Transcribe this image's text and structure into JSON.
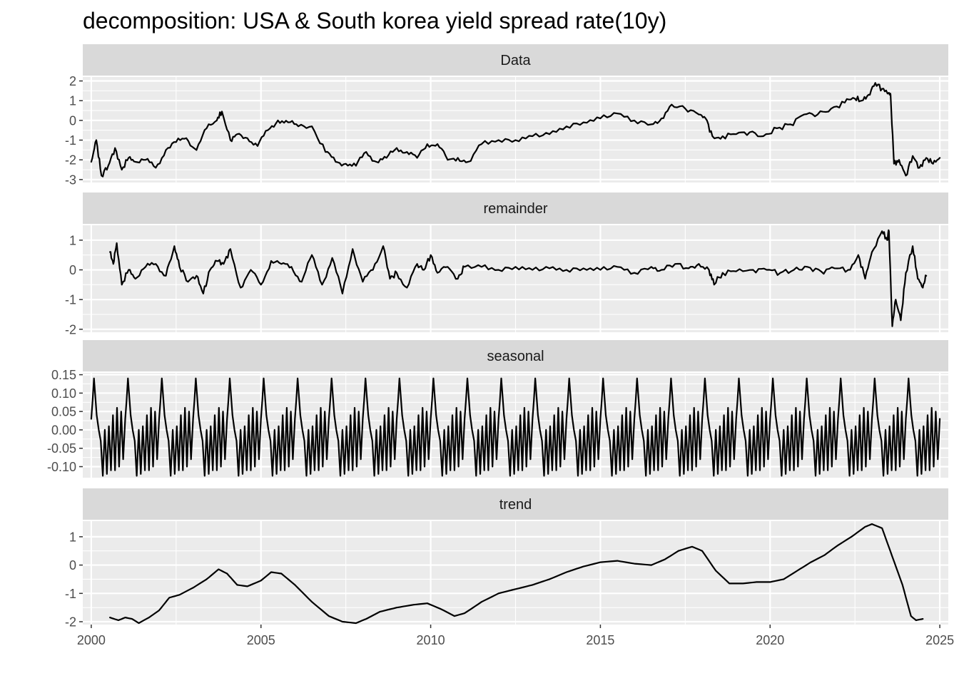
{
  "chart_data": {
    "type": "line",
    "title": "decomposition: USA & South korea yield spread rate(10y)",
    "xlabel": "",
    "ylabel": "",
    "grid": true,
    "xlim": [
      1999.75,
      2025.25
    ],
    "x_ticks": [
      2000,
      2005,
      2010,
      2015,
      2020,
      2025
    ],
    "x_tick_labels": [
      "2000",
      "2005",
      "2010",
      "2015",
      "2020",
      "2025"
    ],
    "colors": {
      "line": "#000000",
      "panel_background": "#ebebeb",
      "strip_background": "#d9d9d9",
      "grid": "#ffffff",
      "tick_text": "#4d4d4d"
    },
    "panels": [
      {
        "strip": "Data",
        "ylim": [
          -3.15,
          2.2
        ],
        "y_ticks": [
          -3,
          -2,
          -1,
          0,
          1,
          2
        ],
        "y_tick_labels": [
          "-3",
          "-2",
          "-1",
          "0",
          "1",
          "2"
        ],
        "series": {
          "x": [
            2000.0,
            2000.15,
            2000.3,
            2000.5,
            2000.7,
            2000.9,
            2001.1,
            2001.3,
            2001.6,
            2001.9,
            2002.2,
            2002.5,
            2002.8,
            2003.1,
            2003.4,
            2003.7,
            2003.85,
            2004.1,
            2004.3,
            2004.6,
            2004.9,
            2005.2,
            2005.5,
            2005.8,
            2006.1,
            2006.5,
            2006.9,
            2007.2,
            2007.5,
            2007.8,
            2008.1,
            2008.4,
            2008.7,
            2009.0,
            2009.3,
            2009.6,
            2009.9,
            2010.2,
            2010.5,
            2010.8,
            2011.1,
            2011.5,
            2012.0,
            2012.5,
            2013.0,
            2013.5,
            2014.0,
            2014.5,
            2015.0,
            2015.5,
            2016.0,
            2016.5,
            2016.8,
            2017.1,
            2017.5,
            2017.9,
            2018.1,
            2018.3,
            2018.6,
            2019.0,
            2019.4,
            2019.8,
            2020.2,
            2020.6,
            2021.0,
            2021.4,
            2021.8,
            2022.2,
            2022.5,
            2022.7,
            2022.9,
            2023.1,
            2023.3,
            2023.5,
            2023.55,
            2023.65,
            2023.8,
            2024.0,
            2024.2,
            2024.4,
            2024.6,
            2024.8,
            2025.0
          ],
          "y": [
            -2.1,
            -1.0,
            -2.8,
            -2.3,
            -1.4,
            -2.5,
            -1.9,
            -2.1,
            -2.0,
            -2.4,
            -1.5,
            -1.1,
            -0.9,
            -1.5,
            -0.4,
            0.0,
            0.45,
            -1.0,
            -0.7,
            -0.9,
            -1.3,
            -0.5,
            0.0,
            -0.1,
            -0.3,
            -0.3,
            -1.6,
            -2.1,
            -2.2,
            -2.3,
            -1.6,
            -2.1,
            -1.9,
            -1.4,
            -1.6,
            -1.9,
            -1.2,
            -1.2,
            -2.0,
            -1.9,
            -2.1,
            -1.2,
            -1.0,
            -1.0,
            -0.8,
            -0.7,
            -0.3,
            -0.1,
            0.1,
            0.35,
            0.0,
            -0.2,
            0.1,
            0.8,
            0.6,
            0.3,
            0.1,
            -0.8,
            -0.8,
            -0.7,
            -0.6,
            -0.8,
            -0.4,
            -0.2,
            0.3,
            0.3,
            0.6,
            0.9,
            1.1,
            1.0,
            1.3,
            1.9,
            1.6,
            1.4,
            1.3,
            -2.2,
            -2.0,
            -2.8,
            -1.8,
            -2.4,
            -1.9,
            -2.2,
            -1.9
          ]
        }
      },
      {
        "strip": "remainder",
        "ylim": [
          -2.1,
          1.5
        ],
        "y_ticks": [
          -2,
          -1,
          0,
          1
        ],
        "y_tick_labels": [
          "-2",
          "-1",
          "0",
          "1"
        ],
        "series": {
          "x": [
            2000.55,
            2000.65,
            2000.75,
            2000.9,
            2001.1,
            2001.3,
            2001.6,
            2001.9,
            2002.2,
            2002.45,
            2002.6,
            2002.85,
            2003.1,
            2003.3,
            2003.5,
            2003.7,
            2003.9,
            2004.1,
            2004.4,
            2004.7,
            2005.0,
            2005.3,
            2005.6,
            2005.9,
            2006.2,
            2006.5,
            2006.8,
            2007.1,
            2007.4,
            2007.7,
            2008.0,
            2008.3,
            2008.6,
            2008.8,
            2009.0,
            2009.3,
            2009.6,
            2009.8,
            2010.0,
            2010.2,
            2010.5,
            2010.8,
            2011.0,
            2011.5,
            2012.0,
            2012.5,
            2013.0,
            2013.5,
            2014.0,
            2014.5,
            2015.0,
            2015.5,
            2016.0,
            2016.5,
            2016.8,
            2017.2,
            2017.6,
            2017.9,
            2018.2,
            2018.35,
            2018.6,
            2019.0,
            2019.5,
            2019.9,
            2020.3,
            2020.7,
            2021.1,
            2021.5,
            2021.9,
            2022.3,
            2022.6,
            2022.8,
            2023.0,
            2023.3,
            2023.45,
            2023.5,
            2023.6,
            2023.7,
            2023.85,
            2024.0,
            2024.2,
            2024.35,
            2024.5,
            2024.6
          ],
          "y": [
            0.6,
            0.2,
            0.9,
            -0.5,
            0.0,
            -0.3,
            0.1,
            0.2,
            -0.2,
            0.8,
            0.1,
            -0.4,
            -0.2,
            -0.8,
            0.0,
            0.3,
            0.2,
            0.7,
            -0.6,
            0.0,
            -0.5,
            0.3,
            0.2,
            0.1,
            -0.4,
            0.5,
            -0.5,
            0.4,
            -0.8,
            0.7,
            -0.4,
            0.0,
            0.8,
            -0.3,
            -0.1,
            -0.6,
            0.2,
            0.0,
            0.5,
            -0.1,
            0.1,
            -0.3,
            0.1,
            0.1,
            0.0,
            0.1,
            0.0,
            0.05,
            0.0,
            0.05,
            0.0,
            0.1,
            -0.1,
            0.1,
            0.0,
            0.2,
            0.05,
            0.2,
            0.0,
            -0.5,
            -0.1,
            -0.05,
            0.0,
            0.0,
            -0.1,
            0.0,
            0.1,
            -0.05,
            0.05,
            0.0,
            0.5,
            -0.3,
            0.6,
            1.3,
            1.0,
            1.3,
            -1.9,
            -1.0,
            -1.7,
            -0.1,
            0.8,
            -0.3,
            -0.6,
            -0.2
          ]
        }
      },
      {
        "strip": "seasonal",
        "ylim": [
          -0.13,
          0.155
        ],
        "y_ticks": [
          -0.1,
          -0.05,
          0.0,
          0.05,
          0.1,
          0.15
        ],
        "y_tick_labels": [
          "-0.10",
          "-0.05",
          "0.00",
          "0.05",
          "0.10",
          "0.15"
        ],
        "seasonal_cycle": {
          "period_years": 1.0,
          "start": 2000.0,
          "end": 2025.0,
          "phase": [
            0.0,
            0.04,
            0.08,
            0.12,
            0.16,
            0.22,
            0.28,
            0.34,
            0.4,
            0.46,
            0.52,
            0.58,
            0.64,
            0.7,
            0.76,
            0.82,
            0.88,
            0.94,
            1.0
          ],
          "values": [
            0.03,
            0.08,
            0.14,
            0.09,
            0.04,
            0.0,
            -0.03,
            -0.125,
            0.0,
            -0.12,
            0.01,
            -0.11,
            0.04,
            -0.11,
            0.06,
            -0.1,
            0.05,
            -0.08,
            0.03
          ]
        }
      },
      {
        "strip": "trend",
        "ylim": [
          -2.1,
          1.55
        ],
        "y_ticks": [
          -2,
          -1,
          0,
          1
        ],
        "y_tick_labels": [
          "-2",
          "-1",
          "0",
          "1"
        ],
        "series": {
          "x": [
            2000.55,
            2000.8,
            2001.0,
            2001.2,
            2001.4,
            2001.7,
            2002.0,
            2002.3,
            2002.6,
            2003.0,
            2003.4,
            2003.75,
            2004.0,
            2004.3,
            2004.6,
            2005.0,
            2005.3,
            2005.6,
            2006.0,
            2006.5,
            2007.0,
            2007.4,
            2007.8,
            2008.1,
            2008.5,
            2009.0,
            2009.5,
            2009.9,
            2010.3,
            2010.7,
            2011.0,
            2011.5,
            2012.0,
            2012.5,
            2013.0,
            2013.5,
            2014.0,
            2014.5,
            2015.0,
            2015.5,
            2016.0,
            2016.5,
            2016.9,
            2017.3,
            2017.7,
            2018.0,
            2018.4,
            2018.8,
            2019.2,
            2019.6,
            2020.0,
            2020.4,
            2020.8,
            2021.2,
            2021.6,
            2022.0,
            2022.4,
            2022.8,
            2023.0,
            2023.3,
            2023.6,
            2023.9,
            2024.15,
            2024.3,
            2024.5
          ],
          "y": [
            -1.85,
            -1.95,
            -1.85,
            -1.9,
            -2.05,
            -1.85,
            -1.6,
            -1.15,
            -1.05,
            -0.8,
            -0.5,
            -0.15,
            -0.3,
            -0.7,
            -0.75,
            -0.55,
            -0.25,
            -0.3,
            -0.7,
            -1.3,
            -1.8,
            -2.0,
            -2.05,
            -1.9,
            -1.65,
            -1.5,
            -1.4,
            -1.35,
            -1.55,
            -1.8,
            -1.7,
            -1.3,
            -1.0,
            -0.85,
            -0.7,
            -0.5,
            -0.25,
            -0.05,
            0.1,
            0.15,
            0.05,
            0.0,
            0.2,
            0.5,
            0.65,
            0.5,
            -0.2,
            -0.65,
            -0.65,
            -0.6,
            -0.6,
            -0.5,
            -0.2,
            0.1,
            0.35,
            0.7,
            1.0,
            1.35,
            1.45,
            1.3,
            0.3,
            -0.7,
            -1.8,
            -1.95,
            -1.9
          ]
        }
      }
    ]
  }
}
